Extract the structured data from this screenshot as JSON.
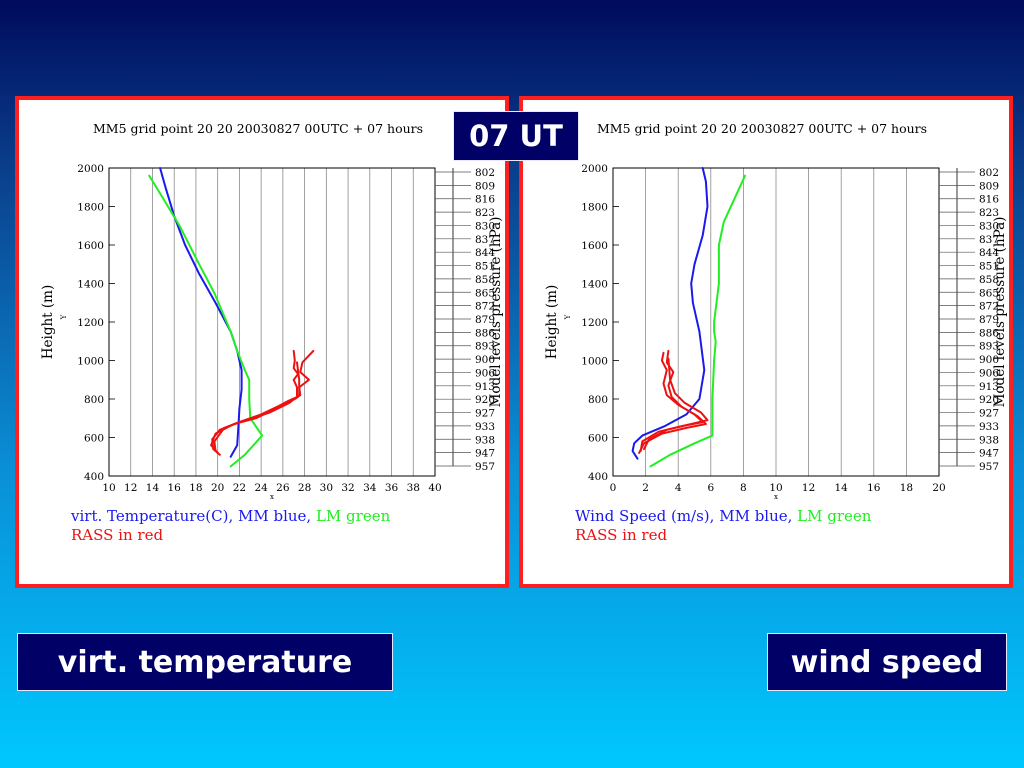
{
  "time_badge": "07 UT",
  "labels": {
    "left": "virt. temperature",
    "right": "wind speed"
  },
  "colors": {
    "mm": "#1a1aee",
    "lm": "#22ee22",
    "rass": "#ee1111",
    "frame": "#ff1f1f",
    "badge": "#000066"
  },
  "pressure_levels": [
    "802",
    "809",
    "816",
    "823",
    "830",
    "837",
    "844",
    "851",
    "858",
    "865",
    "872",
    "879",
    "886",
    "893",
    "900",
    "906",
    "913",
    "920",
    "927",
    "933",
    "938",
    "947",
    "957"
  ],
  "chart_data": [
    {
      "type": "line",
      "title": "MM5 grid point  20 20  20030827 00UTC + 07 hours",
      "xlabel": "x",
      "ylabel": "Height (m)",
      "ylabel_small": "Y",
      "y2label": "Model levels pressure (hPa)",
      "xlim": [
        10,
        40
      ],
      "ylim": [
        400,
        2000
      ],
      "xticks": [
        "10",
        "12",
        "14",
        "16",
        "18",
        "20",
        "22",
        "24",
        "26",
        "28",
        "30",
        "32",
        "34",
        "36",
        "38",
        "40"
      ],
      "yticks": [
        "400",
        "600",
        "800",
        "1000",
        "1200",
        "1400",
        "1600",
        "1800",
        "2000"
      ],
      "legend_line1": [
        {
          "text": "virt. Temperature(C),",
          "color": "#1a1aee"
        },
        {
          "text": "MM blue,",
          "color": "#1a1aee"
        },
        {
          "text": "LM green",
          "color": "#22ee22"
        }
      ],
      "legend_line2": "RASS in red",
      "series": [
        {
          "color": "#1a1aee",
          "x": [
            21.2,
            21.8,
            21.9,
            22,
            22.2,
            22.2,
            21.8,
            21.2,
            19.8,
            18.3,
            17.0,
            16.0,
            15.2,
            14.7
          ],
          "y": [
            500,
            560,
            650,
            750,
            850,
            950,
            1050,
            1150,
            1300,
            1450,
            1600,
            1750,
            1900,
            2000
          ]
        },
        {
          "color": "#22ee22",
          "x": [
            21.2,
            22.5,
            24.1,
            23.0,
            22.9,
            22.9,
            22.5,
            21.8,
            21.2,
            19.7,
            18.3,
            16.5,
            14.9,
            13.7
          ],
          "y": [
            450,
            510,
            610,
            700,
            800,
            900,
            950,
            1050,
            1150,
            1350,
            1500,
            1700,
            1850,
            1960
          ]
        },
        {
          "color": "#ee1111",
          "x": [
            20.2,
            19.6,
            19.5,
            20.2,
            22.0,
            24.0,
            25.5,
            26.5,
            27.3,
            27.3,
            27.0,
            27.4,
            27.0,
            27.1,
            27.0
          ],
          "y": [
            510,
            540,
            590,
            640,
            680,
            720,
            760,
            790,
            810,
            860,
            900,
            930,
            960,
            1000,
            1050
          ]
        },
        {
          "color": "#ee1111",
          "x": [
            20.0,
            19.4,
            19.8,
            21.5,
            23.5,
            25.0,
            26.3,
            27.1,
            27.6,
            27.5,
            28.4,
            27.6,
            27.8,
            28.8
          ],
          "y": [
            520,
            560,
            620,
            670,
            700,
            740,
            780,
            800,
            820,
            860,
            900,
            940,
            990,
            1050
          ]
        },
        {
          "color": "#ee1111",
          "x": [
            19.8,
            19.7,
            20.6,
            22.5,
            24.8,
            26.6,
            27.5,
            27.5,
            27.3
          ],
          "y": [
            530,
            580,
            650,
            690,
            730,
            780,
            820,
            900,
            990
          ]
        }
      ]
    },
    {
      "type": "line",
      "title": "MM5 grid point  20 20  20030827 00UTC + 07 hours",
      "xlabel": "x",
      "ylabel": "Height (m)",
      "ylabel_small": "Y",
      "y2label": "Model levels pressure (hPa)",
      "xlim": [
        0,
        20
      ],
      "ylim": [
        400,
        2000
      ],
      "xticks": [
        "0",
        "2",
        "4",
        "6",
        "8",
        "10",
        "12",
        "14",
        "16",
        "18",
        "20"
      ],
      "yticks": [
        "400",
        "600",
        "800",
        "1000",
        "1200",
        "1400",
        "1600",
        "1800",
        "2000"
      ],
      "legend_line1": [
        {
          "text": "Wind Speed (m/s),",
          "color": "#1a1aee"
        },
        {
          "text": "MM blue,",
          "color": "#1a1aee"
        },
        {
          "text": "LM green",
          "color": "#22ee22"
        }
      ],
      "legend_line2": "RASS in red",
      "series": [
        {
          "color": "#1a1aee",
          "x": [
            1.5,
            1.2,
            1.3,
            1.8,
            3.2,
            4.5,
            5.3,
            5.6,
            5.3,
            4.9,
            4.8,
            5.0,
            5.5,
            5.8,
            5.7,
            5.5
          ],
          "y": [
            490,
            530,
            570,
            610,
            660,
            720,
            800,
            950,
            1150,
            1300,
            1400,
            1500,
            1650,
            1800,
            1930,
            2000
          ]
        },
        {
          "color": "#22ee22",
          "x": [
            2.3,
            3.5,
            5.0,
            6.1,
            6.1,
            6.2,
            6.3,
            6.2,
            6.2,
            6.5,
            6.5,
            6.8,
            7.5,
            8.1
          ],
          "y": [
            450,
            510,
            570,
            610,
            800,
            1000,
            1100,
            1150,
            1200,
            1400,
            1600,
            1720,
            1850,
            1960
          ]
        },
        {
          "color": "#ee1111",
          "x": [
            1.7,
            1.8,
            2.8,
            4.3,
            5.5,
            5.0,
            4.0,
            3.3,
            3.1,
            3.3,
            3.0,
            3.1
          ],
          "y": [
            530,
            580,
            630,
            660,
            680,
            720,
            770,
            820,
            880,
            950,
            1000,
            1040
          ]
        },
        {
          "color": "#ee1111",
          "x": [
            1.6,
            1.9,
            3.0,
            4.5,
            5.7,
            5.2,
            4.2,
            3.6,
            3.4,
            3.7,
            3.3,
            3.4
          ],
          "y": [
            520,
            570,
            620,
            650,
            670,
            710,
            760,
            810,
            870,
            940,
            990,
            1050
          ]
        },
        {
          "color": "#ee1111",
          "x": [
            1.9,
            2.2,
            3.3,
            4.8,
            5.8,
            5.4,
            4.4,
            3.8,
            3.5,
            3.4
          ],
          "y": [
            540,
            590,
            640,
            670,
            690,
            730,
            780,
            830,
            900,
            1010
          ]
        }
      ]
    }
  ]
}
